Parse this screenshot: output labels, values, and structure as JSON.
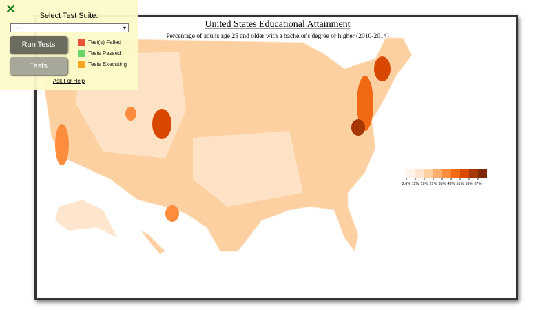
{
  "panel": {
    "close_icon": "✕",
    "select_label": "Select Test Suite:",
    "select_value": "- - -",
    "run_button": "Run Tests",
    "tests_button": "Tests",
    "status_legend": [
      {
        "label": "Test(s) Failed",
        "color": "#e8553c"
      },
      {
        "label": "Tests Passed",
        "color": "#6ad66a"
      },
      {
        "label": "Tests Executing",
        "color": "#f5a623"
      }
    ],
    "help_link": "Ask For Help"
  },
  "map": {
    "title": "United States Educational Attainment",
    "subtitle": "Percentage of adults age 25 and older with a bachelor's degree or higher (2010-2014)",
    "legend": {
      "labels": [
        "2.6%",
        "11%",
        "19%",
        "27%",
        "35%",
        "43%",
        "51%",
        "59%",
        "67%"
      ],
      "colors": [
        "#fff5eb",
        "#fee6ce",
        "#fdd0a2",
        "#fdae6b",
        "#fd8d3c",
        "#f16913",
        "#d94801",
        "#a63603",
        "#7f2704"
      ]
    }
  }
}
